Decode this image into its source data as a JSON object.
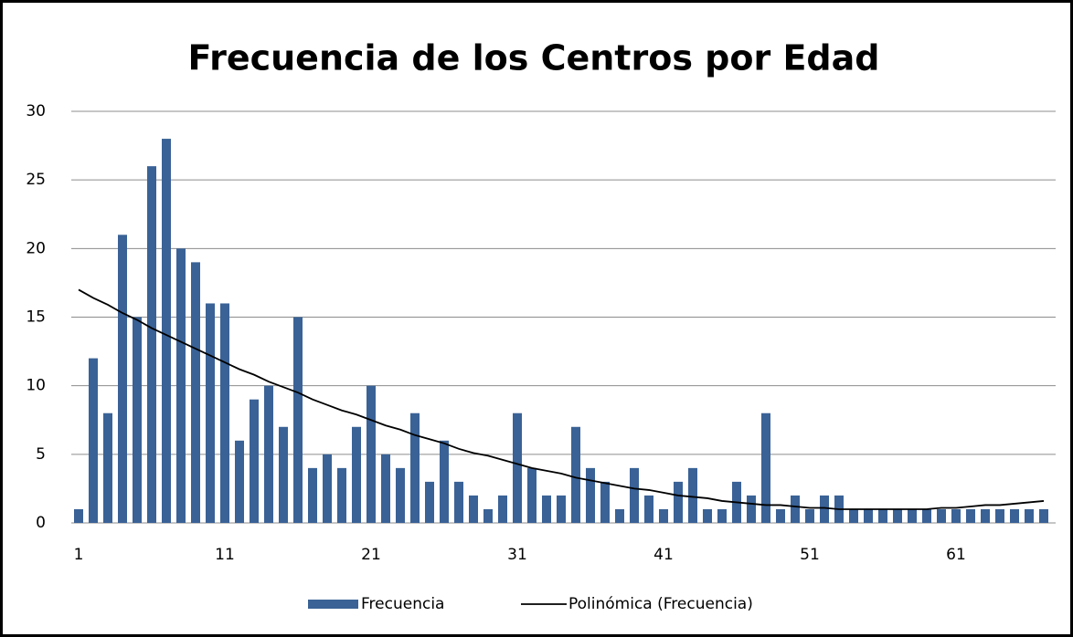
{
  "chart_data": {
    "type": "bar",
    "title": "Frecuencia de los Centros por Edad",
    "categories": [
      "1",
      null,
      null,
      null,
      null,
      null,
      null,
      null,
      null,
      null,
      "11",
      null,
      null,
      null,
      null,
      null,
      null,
      null,
      null,
      null,
      "21",
      null,
      null,
      null,
      null,
      null,
      null,
      null,
      null,
      null,
      "31",
      null,
      null,
      null,
      null,
      null,
      null,
      null,
      null,
      null,
      "41",
      null,
      null,
      null,
      null,
      null,
      null,
      null,
      null,
      null,
      "51",
      null,
      null,
      null,
      null,
      null,
      null,
      null,
      null,
      null,
      "61",
      null,
      null,
      null,
      null,
      null,
      null
    ],
    "series": [
      {
        "name": "Frecuencia",
        "color": "#3a6296",
        "values": [
          1,
          12,
          8,
          21,
          15,
          26,
          28,
          20,
          19,
          16,
          16,
          6,
          9,
          10,
          7,
          15,
          4,
          5,
          4,
          7,
          10,
          5,
          4,
          8,
          3,
          6,
          3,
          2,
          1,
          2,
          8,
          4,
          2,
          2,
          7,
          4,
          3,
          1,
          4,
          2,
          1,
          3,
          4,
          1,
          1,
          3,
          2,
          8,
          1,
          2,
          1,
          2,
          2,
          1,
          1,
          1,
          1,
          1,
          1,
          1,
          1,
          1,
          1,
          1,
          1,
          1,
          1
        ]
      },
      {
        "name": "Polinómica (Frecuencia)",
        "type": "line",
        "color": "#000000",
        "values": [
          17.0,
          16.4,
          15.9,
          15.3,
          14.8,
          14.2,
          13.7,
          13.2,
          12.7,
          12.2,
          11.7,
          11.2,
          10.8,
          10.3,
          9.9,
          9.5,
          9.0,
          8.6,
          8.2,
          7.9,
          7.5,
          7.1,
          6.8,
          6.4,
          6.1,
          5.8,
          5.4,
          5.1,
          4.9,
          4.6,
          4.3,
          4.0,
          3.8,
          3.6,
          3.3,
          3.1,
          2.9,
          2.7,
          2.5,
          2.4,
          2.2,
          2.0,
          1.9,
          1.8,
          1.6,
          1.5,
          1.4,
          1.3,
          1.3,
          1.2,
          1.1,
          1.1,
          1.0,
          1.0,
          1.0,
          1.0,
          1.0,
          1.0,
          1.0,
          1.1,
          1.1,
          1.2,
          1.3,
          1.3,
          1.4,
          1.5,
          1.6
        ]
      }
    ],
    "ylim": [
      0,
      30
    ],
    "yticks": [
      0,
      5,
      10,
      15,
      20,
      25,
      30
    ],
    "grid": true,
    "legend": "bottom"
  }
}
